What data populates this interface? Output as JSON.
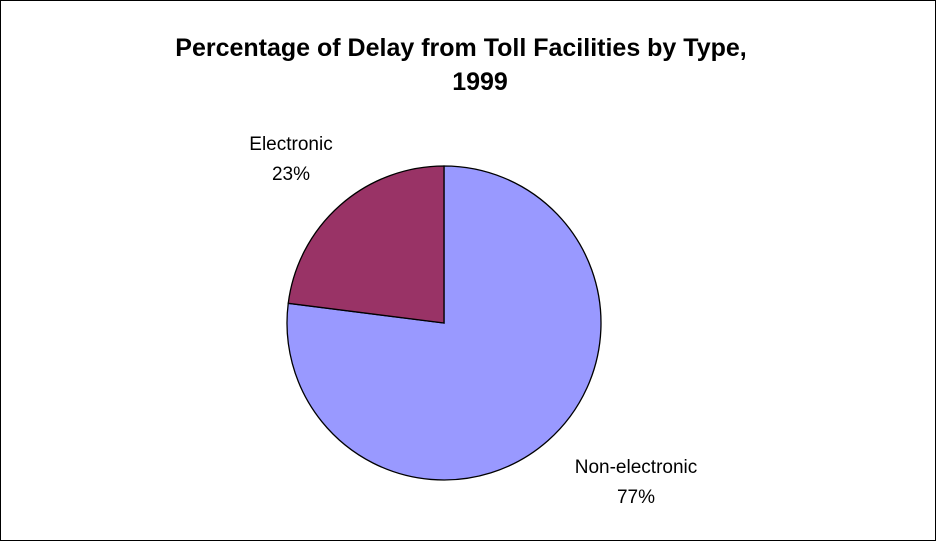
{
  "chart_data": {
    "type": "pie",
    "title_lines": [
      "Percentage of Delay from Toll Facilities by Type,",
      "1999"
    ],
    "slices": [
      {
        "label": "Non-electronic",
        "value": 77,
        "percent_label": "77%",
        "color": "#9999ff"
      },
      {
        "label": "Electronic",
        "value": 23,
        "percent_label": "23%",
        "color": "#993366"
      }
    ],
    "legend": "none",
    "data_labels": "outside"
  }
}
